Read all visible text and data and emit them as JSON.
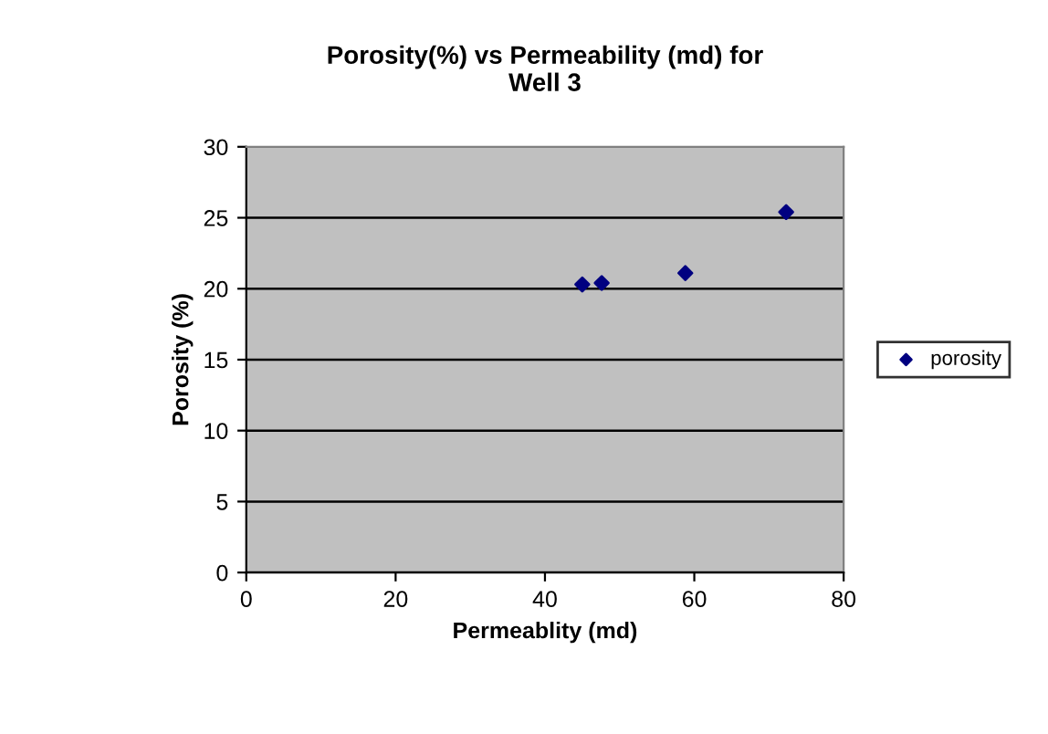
{
  "chart_data": {
    "type": "scatter",
    "title": "Porosity(%) vs Permeability (md) for\nWell 3",
    "xlabel": "Permeablity (md)",
    "ylabel": "Porosity (%)",
    "x": [
      45.0,
      47.6,
      58.8,
      72.3
    ],
    "series": [
      {
        "name": "porosity",
        "color": "#000080",
        "values": [
          20.3,
          20.4,
          21.1,
          25.4
        ]
      }
    ],
    "xlim": [
      0,
      80
    ],
    "xticks": [
      0,
      20,
      40,
      60,
      80
    ],
    "ylim": [
      0,
      30
    ],
    "yticks": [
      0,
      5,
      10,
      15,
      20,
      25,
      30
    ],
    "grid": "y",
    "legend": "right",
    "marker": "diamond"
  }
}
